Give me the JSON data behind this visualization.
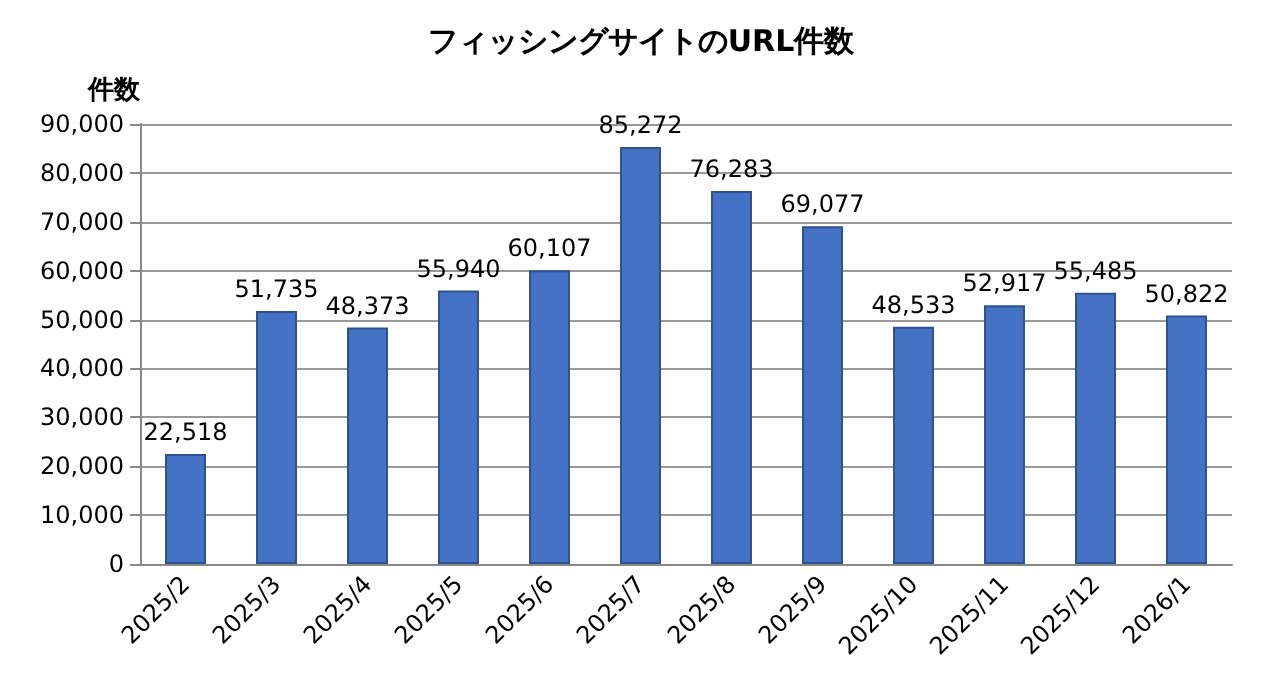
{
  "chart_data": {
    "type": "bar",
    "title": "フィッシングサイトのURL件数",
    "ylabel": "件数",
    "categories": [
      "2025/2",
      "2025/3",
      "2025/4",
      "2025/5",
      "2025/6",
      "2025/7",
      "2025/8",
      "2025/9",
      "2025/10",
      "2025/11",
      "2025/12",
      "2026/1"
    ],
    "values": [
      22518,
      51735,
      48373,
      55940,
      60107,
      85272,
      76283,
      69077,
      48533,
      52917,
      55485,
      50822
    ],
    "value_labels": [
      "22,518",
      "51,735",
      "48,373",
      "55,940",
      "60,107",
      "85,272",
      "76,283",
      "69,077",
      "48,533",
      "52,917",
      "55,485",
      "50,822"
    ],
    "color": "#4472c4",
    "ylim": [
      0,
      90000
    ],
    "yticks": [
      {
        "value": 0,
        "label": "0"
      },
      {
        "value": 10000,
        "label": "10,000"
      },
      {
        "value": 20000,
        "label": "20,000"
      },
      {
        "value": 30000,
        "label": "30,000"
      },
      {
        "value": 40000,
        "label": "40,000"
      },
      {
        "value": 50000,
        "label": "50,000"
      },
      {
        "value": 60000,
        "label": "60,000"
      },
      {
        "value": 70000,
        "label": "70,000"
      },
      {
        "value": 80000,
        "label": "80,000"
      },
      {
        "value": 90000,
        "label": "90,000"
      }
    ],
    "grid": "y"
  }
}
